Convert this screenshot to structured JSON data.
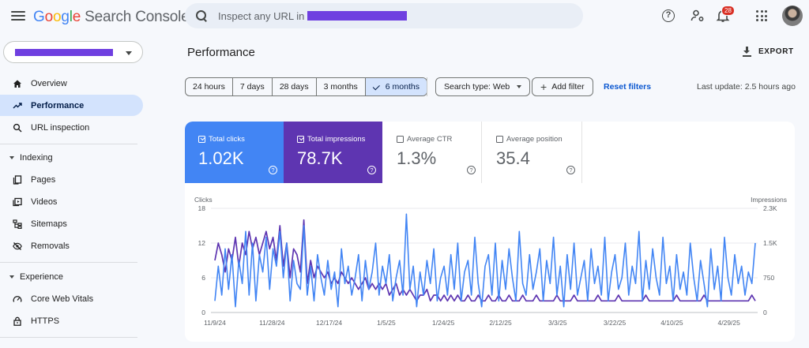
{
  "header": {
    "logo_google": [
      "G",
      "o",
      "o",
      "g",
      "l",
      "e"
    ],
    "logo_product": "Search Console",
    "search_placeholder": "Inspect any URL in",
    "notification_count": "28",
    "help_glyph": "?"
  },
  "sidebar": {
    "items_top": [
      {
        "label": "Overview",
        "icon": "home-icon"
      },
      {
        "label": "Performance",
        "icon": "trending-up-icon",
        "active": true
      },
      {
        "label": "URL inspection",
        "icon": "search-icon"
      }
    ],
    "sections": [
      {
        "label": "Indexing",
        "items": [
          {
            "label": "Pages",
            "icon": "pages-icon"
          },
          {
            "label": "Videos",
            "icon": "video-icon"
          },
          {
            "label": "Sitemaps",
            "icon": "sitemap-icon"
          },
          {
            "label": "Removals",
            "icon": "visibility-off-icon"
          }
        ]
      },
      {
        "label": "Experience",
        "items": [
          {
            "label": "Core Web Vitals",
            "icon": "speed-icon"
          },
          {
            "label": "HTTPS",
            "icon": "lock-icon"
          }
        ]
      }
    ]
  },
  "main": {
    "title": "Performance",
    "export_label": "EXPORT",
    "ranges": [
      "24 hours",
      "7 days",
      "28 days",
      "3 months",
      "6 months"
    ],
    "selected_range": "6 months",
    "search_type": "Search type: Web",
    "add_filter": "Add filter",
    "reset_filters": "Reset filters",
    "last_update": "Last update: 2.5 hours ago"
  },
  "metrics": [
    {
      "label": "Total clicks",
      "value": "1.02K",
      "checked": true
    },
    {
      "label": "Total impressions",
      "value": "78.7K",
      "checked": true
    },
    {
      "label": "Average CTR",
      "value": "1.3%",
      "checked": false
    },
    {
      "label": "Average position",
      "value": "35.4",
      "checked": false
    }
  ],
  "colors": {
    "clicks": "#4285f4",
    "impressions": "#5e35b1",
    "accent": "#0b57d0"
  },
  "chart_data": {
    "type": "line",
    "xlabel": "",
    "y_left_label": "Clicks",
    "y_right_label": "Impressions",
    "y_left_ticks": [
      "0",
      "6",
      "12",
      "18"
    ],
    "y_right_ticks": [
      "0",
      "750",
      "1.5K",
      "2.3K"
    ],
    "ylim_left": [
      0,
      18
    ],
    "ylim_right": [
      0,
      2250
    ],
    "x_ticks": [
      "11/9/24",
      "11/28/24",
      "12/17/24",
      "1/5/25",
      "1/24/25",
      "2/12/25",
      "3/3/25",
      "3/22/25",
      "4/10/25",
      "4/29/25"
    ],
    "grid": true,
    "series": [
      {
        "name": "Clicks",
        "axis": "left",
        "values": [
          2,
          8,
          3,
          11,
          4,
          10,
          1,
          9,
          5,
          14,
          3,
          12,
          2,
          10,
          7,
          13,
          4,
          11,
          8,
          14,
          6,
          12,
          2,
          9,
          5,
          4,
          15,
          3,
          8,
          2,
          10,
          6,
          3,
          9,
          4,
          7,
          1,
          11,
          5,
          8,
          3,
          6,
          10,
          2,
          9,
          4,
          7,
          12,
          3,
          8,
          5,
          10,
          2,
          6,
          9,
          3,
          17,
          4,
          8,
          1,
          7,
          3,
          9,
          5,
          11,
          2,
          6,
          8,
          3,
          10,
          4,
          12,
          2,
          7,
          9,
          3,
          13,
          5,
          1,
          8,
          10,
          3,
          12,
          2,
          9,
          4,
          11,
          6,
          2,
          14,
          5,
          3,
          10,
          4,
          7,
          11,
          2,
          9,
          5,
          13,
          3,
          8,
          1,
          10,
          4,
          12,
          3,
          6,
          9,
          2,
          11,
          5,
          8,
          3,
          13,
          2,
          7,
          10,
          4,
          6,
          12,
          3,
          8,
          5,
          14,
          2,
          9,
          4,
          11,
          6,
          3,
          13,
          5,
          8,
          2,
          10,
          4,
          7,
          3,
          12,
          6,
          2,
          9,
          5,
          1,
          11,
          4,
          8,
          2,
          13,
          6,
          3,
          10,
          5,
          8,
          3,
          7,
          5,
          12
        ]
      },
      {
        "name": "Impressions",
        "axis": "left",
        "values": [
          9,
          12,
          10,
          7,
          11,
          9,
          13,
          8,
          12,
          10,
          14,
          11,
          13,
          10,
          12,
          14,
          11,
          13,
          9,
          15,
          8,
          12,
          6,
          11,
          10,
          7,
          16,
          5,
          9,
          6,
          8,
          7,
          6,
          7,
          5,
          6,
          5,
          7,
          6,
          5,
          6,
          5,
          4,
          5,
          6,
          4,
          5,
          4,
          5,
          4,
          5,
          3,
          4,
          5,
          3,
          4,
          3,
          4,
          3,
          2,
          3,
          3,
          4,
          2,
          3,
          3,
          2,
          3,
          2,
          3,
          2,
          3,
          2,
          2,
          3,
          2,
          2,
          3,
          2,
          2,
          3,
          2,
          2,
          3,
          2,
          2,
          3,
          2,
          2,
          2,
          3,
          2,
          2,
          2,
          3,
          2,
          2,
          2,
          2,
          2,
          3,
          2,
          2,
          2,
          2,
          3,
          2,
          2,
          2,
          2,
          2,
          2,
          3,
          2,
          2,
          2,
          2,
          2,
          3,
          2,
          2,
          2,
          2,
          2,
          2,
          2,
          3,
          2,
          2,
          2,
          2,
          2,
          2,
          2,
          2,
          3,
          2,
          2,
          2,
          2,
          2,
          2,
          2,
          3,
          2,
          2,
          2,
          2,
          2,
          2,
          2,
          2,
          2,
          2,
          2,
          2,
          2,
          3,
          2
        ]
      }
    ]
  }
}
